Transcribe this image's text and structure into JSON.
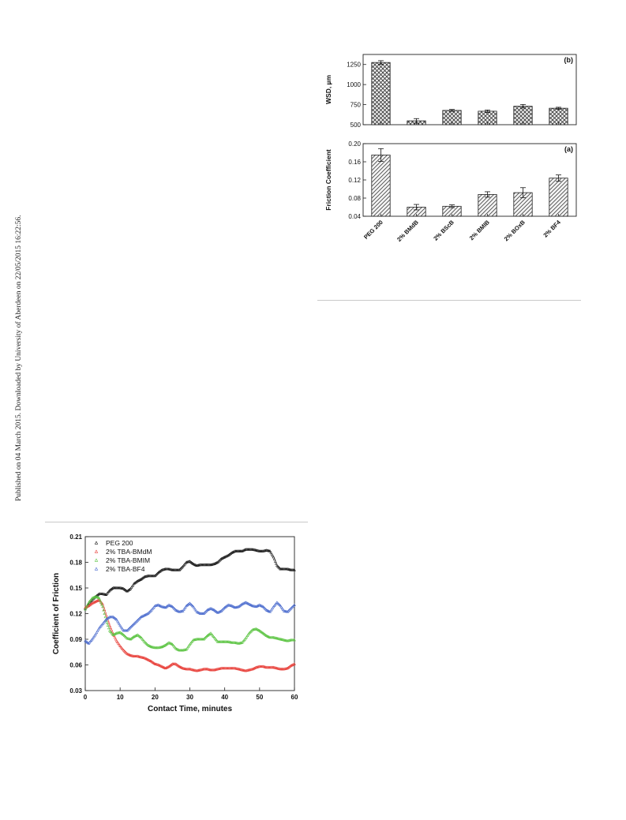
{
  "side_note": "Published on 04 March 2015. Downloaded by University of Aberdeen on 22/05/2015 16:22:56.",
  "colors": {
    "black": "#1a1a1a",
    "red": "#e8403a",
    "green": "#5cc443",
    "blue": "#4f6fcf"
  },
  "chart_data": [
    {
      "type": "bar",
      "panel_label": "(b)",
      "ylabel": "WSD, µm",
      "categories": [
        "PEG 200",
        "2% BMdB",
        "2% BScB",
        "2% BMIB",
        "2% BOxB",
        "2% BF4"
      ],
      "values": [
        1275,
        548,
        678,
        668,
        730,
        705
      ],
      "errors": [
        22,
        28,
        12,
        15,
        22,
        12
      ],
      "ylim": [
        500,
        1375
      ],
      "yticks": [
        "500",
        "750",
        "1000",
        "1250"
      ],
      "pattern": "crosshatch"
    },
    {
      "type": "bar",
      "panel_label": "(a)",
      "ylabel": "Friction Coefficient",
      "categories": [
        "PEG 200",
        "2% BMdB",
        "2% BScB",
        "2% BMIB",
        "2% BOxB",
        "2% BF4"
      ],
      "values": [
        0.175,
        0.06,
        0.062,
        0.088,
        0.092,
        0.124
      ],
      "errors": [
        0.014,
        0.006,
        0.003,
        0.006,
        0.011,
        0.007
      ],
      "ylim": [
        0.04,
        0.2
      ],
      "yticks": [
        "0.04",
        "0.08",
        "0.12",
        "0.16",
        "0.20"
      ],
      "pattern": "diagonal"
    },
    {
      "type": "scatter",
      "xlabel": "Contact Time, minutes",
      "ylabel": "Coefficient of Friction",
      "xlim": [
        0,
        60
      ],
      "ylim": [
        0.03,
        0.21
      ],
      "xticks": [
        "0",
        "10",
        "20",
        "30",
        "40",
        "50",
        "60"
      ],
      "yticks": [
        "0.03",
        "0.06",
        "0.09",
        "0.12",
        "0.15",
        "0.18",
        "0.21"
      ],
      "legend_position": "top-left",
      "marker": "triangle",
      "series": [
        {
          "name": "PEG 200",
          "color": "#1a1a1a",
          "x": [
            0,
            1,
            2,
            3,
            4,
            5,
            6,
            7,
            8,
            9,
            10,
            11,
            12,
            13,
            14,
            15,
            16,
            17,
            18,
            19,
            20,
            21,
            22,
            23,
            24,
            25,
            26,
            27,
            28,
            29,
            30,
            31,
            32,
            33,
            34,
            35,
            36,
            37,
            38,
            39,
            40,
            41,
            42,
            43,
            44,
            45,
            46,
            47,
            48,
            49,
            50,
            51,
            52,
            53,
            54,
            55,
            56,
            57,
            58,
            59,
            60
          ],
          "y": [
            0.126,
            0.131,
            0.136,
            0.14,
            0.143,
            0.143,
            0.142,
            0.147,
            0.15,
            0.15,
            0.15,
            0.149,
            0.146,
            0.149,
            0.155,
            0.158,
            0.16,
            0.163,
            0.164,
            0.164,
            0.164,
            0.168,
            0.171,
            0.172,
            0.172,
            0.171,
            0.171,
            0.171,
            0.175,
            0.18,
            0.181,
            0.178,
            0.176,
            0.177,
            0.177,
            0.177,
            0.177,
            0.178,
            0.18,
            0.184,
            0.186,
            0.188,
            0.191,
            0.193,
            0.193,
            0.193,
            0.195,
            0.195,
            0.195,
            0.194,
            0.193,
            0.193,
            0.194,
            0.193,
            0.186,
            0.176,
            0.172,
            0.172,
            0.172,
            0.171,
            0.171
          ]
        },
        {
          "name": "2% TBA-BMdM",
          "color": "#e8403a",
          "x": [
            0,
            1,
            2,
            3,
            4,
            5,
            6,
            7,
            8,
            9,
            10,
            11,
            12,
            13,
            14,
            15,
            16,
            17,
            18,
            19,
            20,
            21,
            22,
            23,
            24,
            25,
            26,
            27,
            28,
            29,
            30,
            31,
            32,
            33,
            34,
            35,
            36,
            37,
            38,
            39,
            40,
            41,
            42,
            43,
            44,
            45,
            46,
            47,
            48,
            49,
            50,
            51,
            52,
            53,
            54,
            55,
            56,
            57,
            58,
            59,
            60
          ],
          "y": [
            0.127,
            0.129,
            0.132,
            0.134,
            0.136,
            0.131,
            0.118,
            0.106,
            0.096,
            0.088,
            0.082,
            0.077,
            0.073,
            0.071,
            0.07,
            0.07,
            0.069,
            0.068,
            0.066,
            0.064,
            0.061,
            0.06,
            0.058,
            0.056,
            0.058,
            0.061,
            0.061,
            0.058,
            0.056,
            0.055,
            0.055,
            0.054,
            0.053,
            0.054,
            0.055,
            0.055,
            0.054,
            0.054,
            0.055,
            0.056,
            0.056,
            0.056,
            0.056,
            0.056,
            0.055,
            0.054,
            0.053,
            0.054,
            0.055,
            0.057,
            0.058,
            0.058,
            0.057,
            0.057,
            0.057,
            0.056,
            0.055,
            0.055,
            0.056,
            0.059,
            0.061
          ]
        },
        {
          "name": "2% TBA-BMIM",
          "color": "#5cc443",
          "x": [
            0,
            1,
            2,
            3,
            4,
            5,
            6,
            7,
            8,
            9,
            10,
            11,
            12,
            13,
            14,
            15,
            16,
            17,
            18,
            19,
            20,
            21,
            22,
            23,
            24,
            25,
            26,
            27,
            28,
            29,
            30,
            31,
            32,
            33,
            34,
            35,
            36,
            37,
            38,
            39,
            40,
            41,
            42,
            43,
            44,
            45,
            46,
            47,
            48,
            49,
            50,
            51,
            52,
            53,
            54,
            55,
            56,
            57,
            58,
            59,
            60
          ],
          "y": [
            0.125,
            0.133,
            0.138,
            0.14,
            0.138,
            0.128,
            0.112,
            0.1,
            0.095,
            0.097,
            0.098,
            0.095,
            0.091,
            0.09,
            0.093,
            0.095,
            0.092,
            0.087,
            0.083,
            0.081,
            0.08,
            0.08,
            0.081,
            0.083,
            0.086,
            0.084,
            0.079,
            0.077,
            0.077,
            0.078,
            0.084,
            0.089,
            0.09,
            0.09,
            0.09,
            0.094,
            0.097,
            0.092,
            0.087,
            0.087,
            0.087,
            0.087,
            0.086,
            0.086,
            0.085,
            0.086,
            0.091,
            0.097,
            0.101,
            0.102,
            0.1,
            0.097,
            0.094,
            0.092,
            0.092,
            0.091,
            0.09,
            0.089,
            0.088,
            0.089,
            0.089
          ]
        },
        {
          "name": "2% TBA-BF4",
          "color": "#4f6fcf",
          "x": [
            0,
            1,
            2,
            3,
            4,
            5,
            6,
            7,
            8,
            9,
            10,
            11,
            12,
            13,
            14,
            15,
            16,
            17,
            18,
            19,
            20,
            21,
            22,
            23,
            24,
            25,
            26,
            27,
            28,
            29,
            30,
            31,
            32,
            33,
            34,
            35,
            36,
            37,
            38,
            39,
            40,
            41,
            42,
            43,
            44,
            45,
            46,
            47,
            48,
            49,
            50,
            51,
            52,
            53,
            54,
            55,
            56,
            57,
            58,
            59,
            60
          ],
          "y": [
            0.088,
            0.085,
            0.09,
            0.096,
            0.103,
            0.108,
            0.113,
            0.116,
            0.116,
            0.113,
            0.106,
            0.1,
            0.1,
            0.104,
            0.108,
            0.112,
            0.116,
            0.118,
            0.12,
            0.124,
            0.129,
            0.13,
            0.128,
            0.127,
            0.13,
            0.128,
            0.124,
            0.122,
            0.123,
            0.129,
            0.132,
            0.128,
            0.122,
            0.12,
            0.12,
            0.124,
            0.126,
            0.124,
            0.121,
            0.123,
            0.127,
            0.13,
            0.129,
            0.127,
            0.128,
            0.131,
            0.133,
            0.131,
            0.129,
            0.128,
            0.13,
            0.128,
            0.124,
            0.122,
            0.128,
            0.133,
            0.129,
            0.123,
            0.122,
            0.126,
            0.13
          ]
        }
      ]
    }
  ]
}
